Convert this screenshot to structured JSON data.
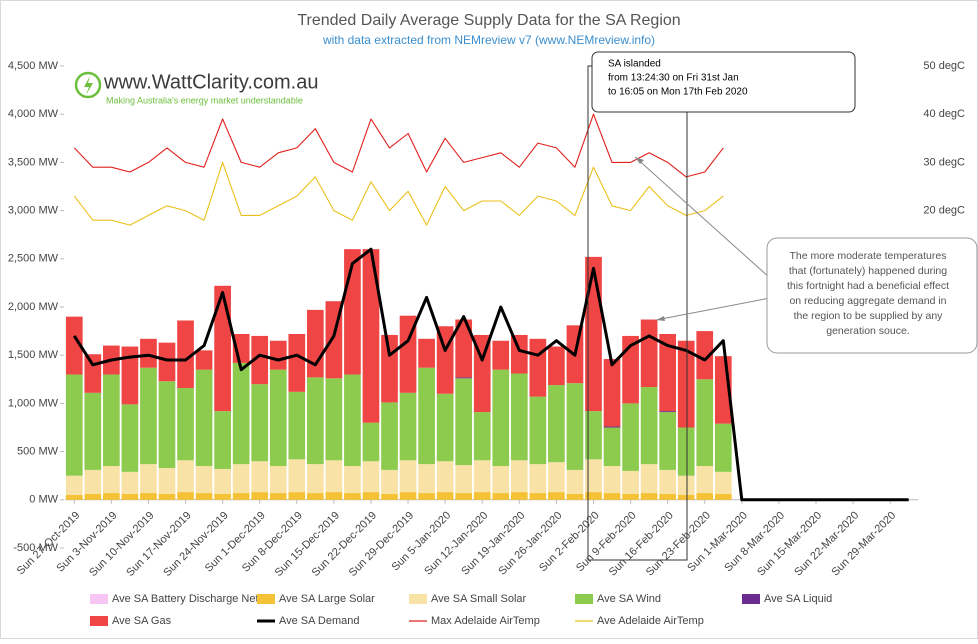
{
  "chart_data": {
    "type": "bar",
    "title": "Trended Daily Average Supply Data for the SA Region",
    "subtitle": "with data extracted from NEMreview v7 (www.NEMreview.info)",
    "logo": {
      "text": "www.WattClarity.com.au",
      "tagline": "Making Australia's energy market understandable"
    },
    "annotations": [
      [
        "SA islanded",
        "from 13:24:30 on Fri 31st Jan",
        "to 16:05 on Mon 17th Feb 2020"
      ],
      [
        "The more moderate temperatures",
        "that (fortunately) happened during",
        "this fortnight had a beneficial effect",
        "on reducing aggregate demand in",
        "the region to be supplied by any",
        "generation souce."
      ]
    ],
    "categories": [
      "Sun 27-Oct-2019",
      null,
      "Sun 3-Nov-2019",
      null,
      "Sun 10-Nov-2019",
      null,
      "Sun 17-Nov-2019",
      null,
      "Sun 24-Nov-2019",
      null,
      "Sun 1-Dec-2019",
      null,
      "Sun 8-Dec-2019",
      null,
      "Sun 15-Dec-2019",
      null,
      "Sun 22-Dec-2019",
      null,
      "Sun 29-Dec-2019",
      null,
      "Sun 5-Jan-2020",
      null,
      "Sun 12-Jan-2020",
      null,
      "Sun 19-Jan-2020",
      null,
      "Sun 26-Jan-2020",
      null,
      "Sun 2-Feb-2020",
      null,
      "Sun 9-Feb-2020",
      null,
      "Sun 16-Feb-2020",
      null,
      "Sun 23-Feb-2020",
      null,
      "Sun 1-Mar-2020",
      null,
      "Sun 8-Mar-2020",
      null,
      "Sun 15-Mar-2020",
      null,
      "Sun 22-Mar-2020",
      null,
      "Sun 29-Mar-2020",
      null
    ],
    "series": [
      {
        "name": "Ave SA Battery Discharge Nett",
        "type": "bar",
        "color": "#f7c6f5",
        "values": [
          0,
          0,
          0,
          0,
          0,
          0,
          0,
          0,
          0,
          0,
          0,
          0,
          0,
          0,
          0,
          0,
          0,
          0,
          0,
          0,
          0,
          0,
          0,
          0,
          0,
          0,
          0,
          0,
          0,
          0,
          0,
          0,
          0,
          0,
          0,
          0,
          null,
          null,
          null,
          null,
          null,
          null,
          null,
          null,
          null,
          null
        ]
      },
      {
        "name": "Ave SA Large Solar",
        "type": "bar",
        "color": "#f5c236",
        "values": [
          50,
          60,
          70,
          60,
          70,
          60,
          80,
          70,
          60,
          70,
          80,
          70,
          80,
          70,
          80,
          70,
          80,
          60,
          80,
          70,
          80,
          70,
          80,
          70,
          80,
          70,
          80,
          60,
          80,
          70,
          60,
          70,
          60,
          50,
          70,
          60,
          null,
          null,
          null,
          null,
          null,
          null,
          null,
          null,
          null,
          null
        ]
      },
      {
        "name": "Ave SA Small Solar",
        "type": "bar",
        "color": "#f9e2a6",
        "values": [
          200,
          250,
          280,
          230,
          300,
          270,
          330,
          280,
          260,
          300,
          320,
          280,
          340,
          300,
          330,
          280,
          320,
          250,
          330,
          300,
          320,
          290,
          330,
          280,
          330,
          300,
          310,
          250,
          340,
          280,
          240,
          300,
          250,
          200,
          280,
          230,
          null,
          null,
          null,
          null,
          null,
          null,
          null,
          null,
          null,
          null
        ]
      },
      {
        "name": "Ave SA Wind",
        "type": "bar",
        "color": "#8dcb4e",
        "values": [
          1050,
          800,
          950,
          700,
          1000,
          900,
          750,
          1000,
          600,
          1050,
          800,
          1000,
          700,
          900,
          850,
          950,
          400,
          700,
          700,
          1000,
          700,
          900,
          500,
          1000,
          900,
          700,
          800,
          900,
          500,
          400,
          700,
          800,
          600,
          500,
          900,
          500,
          null,
          null,
          null,
          null,
          null,
          null,
          null,
          null,
          null,
          null
        ]
      },
      {
        "name": "Ave SA Liquid",
        "type": "bar",
        "color": "#6a2c91",
        "values": [
          0,
          0,
          0,
          0,
          0,
          0,
          0,
          0,
          0,
          0,
          0,
          0,
          0,
          0,
          0,
          0,
          0,
          0,
          0,
          0,
          0,
          10,
          0,
          0,
          0,
          0,
          0,
          0,
          0,
          10,
          0,
          0,
          10,
          0,
          0,
          0,
          null,
          null,
          null,
          null,
          null,
          null,
          null,
          null,
          null,
          null
        ]
      },
      {
        "name": "Ave SA Gas",
        "type": "bar",
        "color": "#f04545",
        "values": [
          600,
          400,
          300,
          600,
          300,
          400,
          700,
          200,
          1300,
          300,
          500,
          300,
          600,
          700,
          800,
          1300,
          1800,
          700,
          800,
          300,
          700,
          600,
          800,
          300,
          400,
          600,
          400,
          600,
          1600,
          700,
          700,
          700,
          800,
          900,
          500,
          700,
          null,
          null,
          null,
          null,
          null,
          null,
          null,
          null,
          null,
          null
        ]
      },
      {
        "name": "Ave SA Demand",
        "type": "line",
        "color": "#000000",
        "values": [
          1700,
          1400,
          1450,
          1480,
          1500,
          1450,
          1450,
          1600,
          2150,
          1350,
          1500,
          1450,
          1500,
          1400,
          1700,
          2450,
          2600,
          1500,
          1650,
          2100,
          1550,
          1900,
          1450,
          2000,
          1550,
          1500,
          1650,
          1500,
          2400,
          1400,
          1600,
          1700,
          1600,
          1550,
          1450,
          1650,
          0,
          0,
          0,
          0,
          0,
          0,
          0,
          0,
          0,
          0
        ]
      },
      {
        "name": "Max Adelaide AirTemp",
        "type": "line",
        "axis": "y2",
        "color": "#e0201c",
        "values": [
          33,
          29,
          29,
          28,
          30,
          33,
          30,
          29,
          39,
          30,
          29,
          32,
          33,
          37,
          30,
          28,
          39,
          33,
          36,
          28,
          35,
          30,
          31,
          32,
          29,
          34,
          33,
          29,
          40,
          30,
          30,
          32,
          30,
          27,
          28,
          33,
          null,
          null,
          null,
          null,
          null,
          null,
          null,
          null,
          null,
          null
        ]
      },
      {
        "name": "Ave Adelaide AirTemp",
        "type": "line",
        "axis": "y2",
        "color": "#ecc01c",
        "values": [
          23,
          18,
          18,
          17,
          19,
          21,
          20,
          18,
          30,
          19,
          19,
          21,
          23,
          27,
          20,
          18,
          26,
          20,
          24,
          17,
          25,
          20,
          22,
          22,
          19,
          23,
          22,
          19,
          29,
          21,
          20,
          25,
          21,
          19,
          20,
          23,
          null,
          null,
          null,
          null,
          null,
          null,
          null,
          null,
          null,
          null
        ]
      }
    ],
    "ylim": [
      -500,
      4500
    ],
    "yticks": [
      {
        "value": -500,
        "label": "-500 MW"
      },
      {
        "value": 0,
        "label": "0 MW"
      },
      {
        "value": 500,
        "label": "500 MW"
      },
      {
        "value": 1000,
        "label": "1,000 MW"
      },
      {
        "value": 1500,
        "label": "1,500 MW"
      },
      {
        "value": 2000,
        "label": "2,000 MW"
      },
      {
        "value": 2500,
        "label": "2,500 MW"
      },
      {
        "value": 3000,
        "label": "3,000 MW"
      },
      {
        "value": 3500,
        "label": "3,500 MW"
      },
      {
        "value": 4000,
        "label": "4,000 MW"
      },
      {
        "value": 4500,
        "label": "4,500 MW"
      }
    ],
    "y2lim": [
      -50,
      50
    ],
    "y2ticks": [
      {
        "value": 20,
        "label": "20 degC"
      },
      {
        "value": 30,
        "label": "30 degC"
      },
      {
        "value": 40,
        "label": "40 degC"
      },
      {
        "value": 50,
        "label": "50 degC"
      }
    ],
    "grid": false
  }
}
